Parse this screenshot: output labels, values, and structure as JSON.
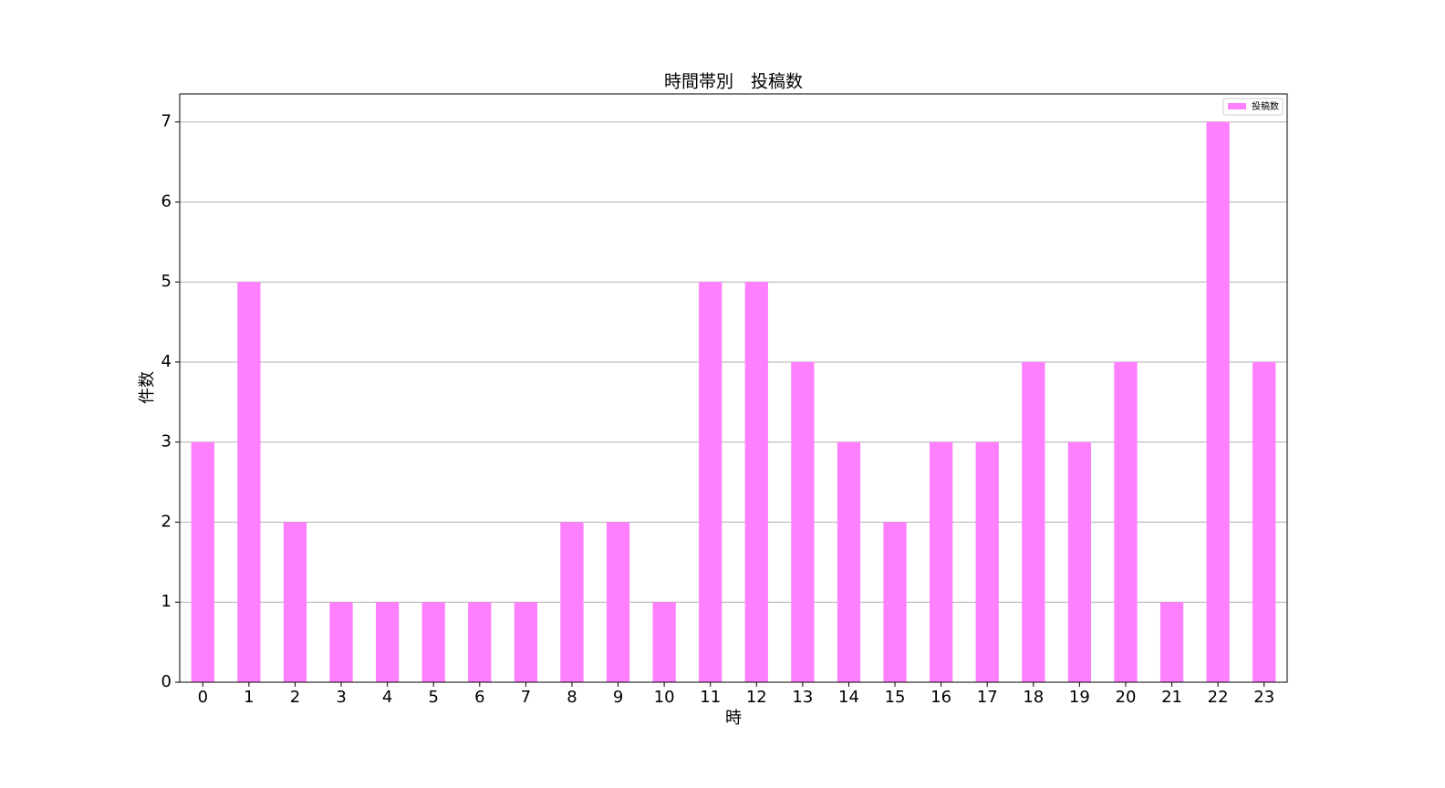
{
  "chart_data": {
    "type": "bar",
    "title": "時間帯別　投稿数",
    "x_label": "時",
    "y_label": "件数",
    "categories": [
      "0",
      "1",
      "2",
      "3",
      "4",
      "5",
      "6",
      "7",
      "8",
      "9",
      "10",
      "11",
      "12",
      "13",
      "14",
      "15",
      "16",
      "17",
      "18",
      "19",
      "20",
      "21",
      "22",
      "23"
    ],
    "series": [
      {
        "name": "投稿数",
        "color": "#ff80ff",
        "values": [
          3,
          5,
          2,
          1,
          1,
          1,
          1,
          1,
          2,
          2,
          1,
          5,
          5,
          4,
          3,
          2,
          3,
          3,
          4,
          3,
          4,
          1,
          7,
          4
        ]
      }
    ],
    "ylim": [
      0,
      7.35
    ],
    "yticks": [
      0,
      1,
      2,
      3,
      4,
      5,
      6,
      7
    ],
    "grid": true,
    "legend": "upper right"
  }
}
